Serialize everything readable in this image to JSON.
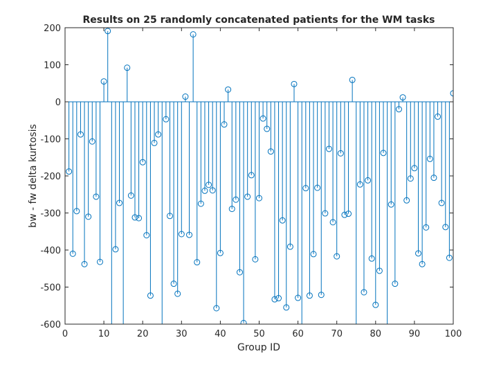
{
  "chart_data": {
    "type": "stem",
    "title": "Results on 25 randomly concatenated patients for the WM tasks",
    "xlabel": "Group ID",
    "ylabel": "bw - fw delta kurtosis",
    "xlim": [
      0,
      100
    ],
    "ylim": [
      -600,
      200
    ],
    "xticks": [
      "0",
      "10",
      "20",
      "30",
      "40",
      "50",
      "60",
      "70",
      "80",
      "90",
      "100"
    ],
    "yticks": [
      "-600",
      "-500",
      "-400",
      "-300",
      "-200",
      "-100",
      "0",
      "100",
      "200"
    ],
    "baseline": 0,
    "grid": false,
    "color": "#0072BD",
    "marker": "circle",
    "x": [
      1,
      2,
      3,
      4,
      5,
      6,
      7,
      8,
      9,
      10,
      11,
      12,
      13,
      14,
      15,
      16,
      17,
      18,
      19,
      20,
      21,
      22,
      23,
      24,
      25,
      26,
      27,
      28,
      29,
      30,
      31,
      32,
      33,
      34,
      35,
      36,
      37,
      38,
      39,
      40,
      41,
      42,
      43,
      44,
      45,
      46,
      47,
      48,
      49,
      50,
      51,
      52,
      53,
      54,
      55,
      56,
      57,
      58,
      59,
      60,
      61,
      62,
      63,
      64,
      65,
      66,
      67,
      68,
      69,
      70,
      71,
      72,
      73,
      74,
      75,
      76,
      77,
      78,
      79,
      80,
      81,
      82,
      83,
      84,
      85,
      86,
      87,
      88,
      89,
      90,
      91,
      92,
      93,
      94,
      95,
      96,
      97,
      98,
      99,
      100
    ],
    "values": [
      -188,
      -410,
      -295,
      -88,
      -438,
      -310,
      -107,
      -256,
      -432,
      55,
      191,
      -640,
      -398,
      -273,
      -640,
      92,
      -253,
      -312,
      -314,
      -163,
      -360,
      -523,
      -111,
      -88,
      -640,
      -47,
      -308,
      -491,
      -518,
      -357,
      14,
      -359,
      182,
      -433,
      -275,
      -240,
      -224,
      -239,
      -557,
      -408,
      -61,
      33,
      -289,
      -264,
      -460,
      -597,
      -256,
      -198,
      -425,
      -260,
      -45,
      -73,
      -134,
      -533,
      -530,
      -320,
      -555,
      -391,
      48,
      -529,
      -640,
      -233,
      -523,
      -411,
      -232,
      -521,
      -301,
      -127,
      -325,
      -417,
      -139,
      -305,
      -302,
      59,
      -640,
      -223,
      -514,
      -212,
      -423,
      -548,
      -456,
      -138,
      -640,
      -277,
      -491,
      -20,
      12,
      -266,
      -207,
      -179,
      -409,
      -438,
      -339,
      -154,
      -205,
      -40,
      -273,
      -338,
      -421,
      23
    ]
  }
}
